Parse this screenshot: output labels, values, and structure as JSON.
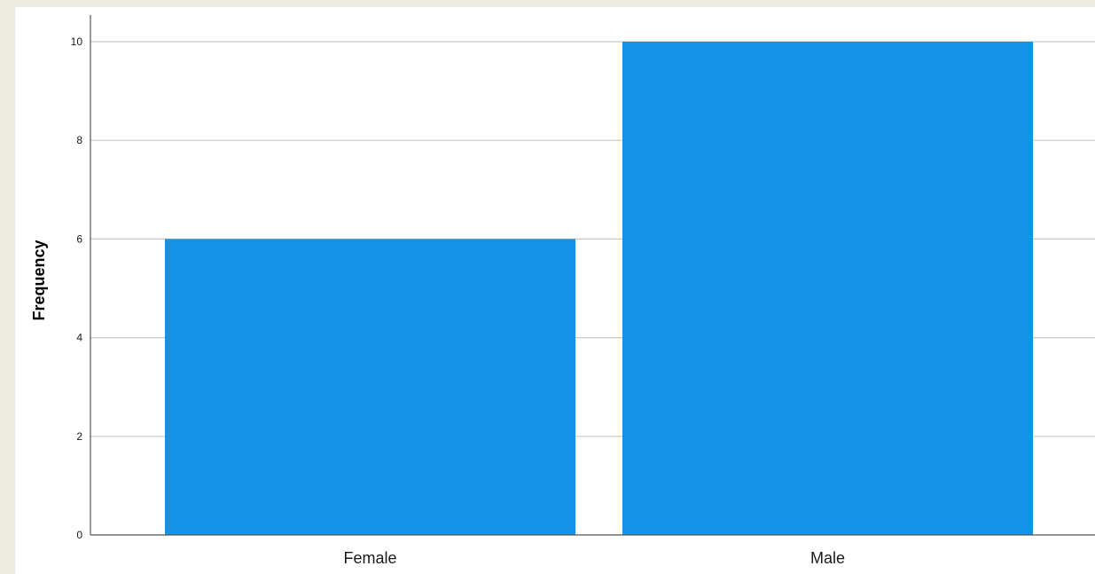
{
  "chart_data": {
    "type": "bar",
    "categories": [
      "Female",
      "Male"
    ],
    "values": [
      6,
      10
    ],
    "title": "",
    "xlabel": "",
    "ylabel": "Frequency",
    "ylim": [
      0,
      10
    ],
    "yticks": [
      "0",
      "2",
      "4",
      "6",
      "8",
      "10"
    ],
    "grid": true,
    "bar_color": "#1592e6"
  }
}
